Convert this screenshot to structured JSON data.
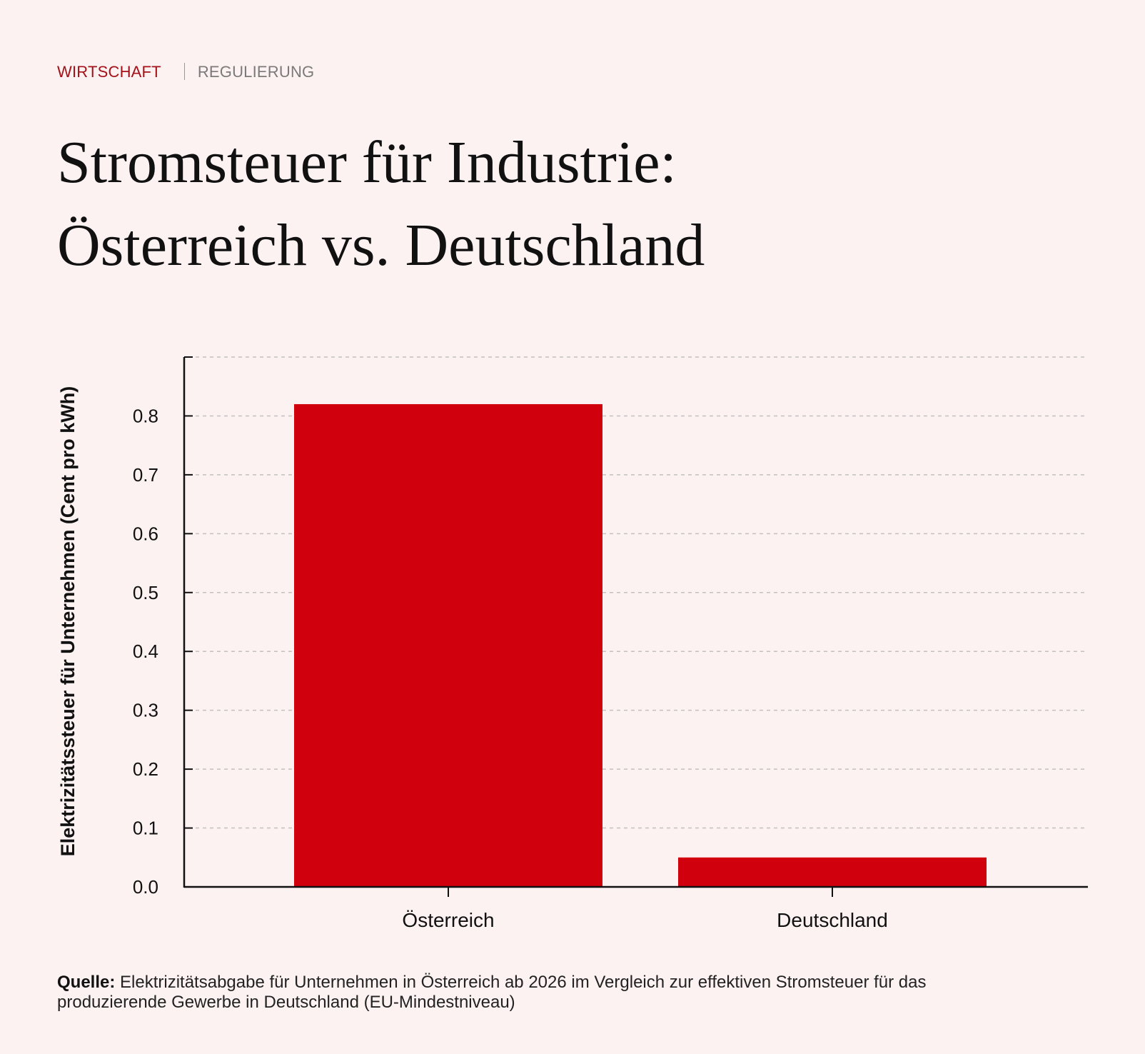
{
  "header": {
    "section": "WIRTSCHAFT",
    "subsection": "REGULIERUNG"
  },
  "title_line1": "Stromsteuer für Industrie:",
  "title_line2": "Österreich vs. Deutschland",
  "chart_data": {
    "type": "bar",
    "title": "Stromsteuer für Industrie: Österreich vs. Deutschland",
    "categories": [
      "Österreich",
      "Deutschland"
    ],
    "values": [
      0.82,
      0.05
    ],
    "xlabel": "",
    "ylabel": "Elektrizitätssteuer für Unternehmen (Cent pro kWh)",
    "ylim": [
      0,
      0.9
    ],
    "yticks": [
      "0.0",
      "0.1",
      "0.2",
      "0.3",
      "0.4",
      "0.5",
      "0.6",
      "0.7",
      "0.8"
    ],
    "grid": true,
    "bar_color": "#d0000d"
  },
  "source": {
    "label": "Quelle:",
    "text": "Elektrizitätsabgabe für Unternehmen in Österreich ab 2026 im Vergleich zur effektiven Stromsteuer für das produzierende Gewerbe in Deutschland (EU-Mindestniveau)"
  }
}
